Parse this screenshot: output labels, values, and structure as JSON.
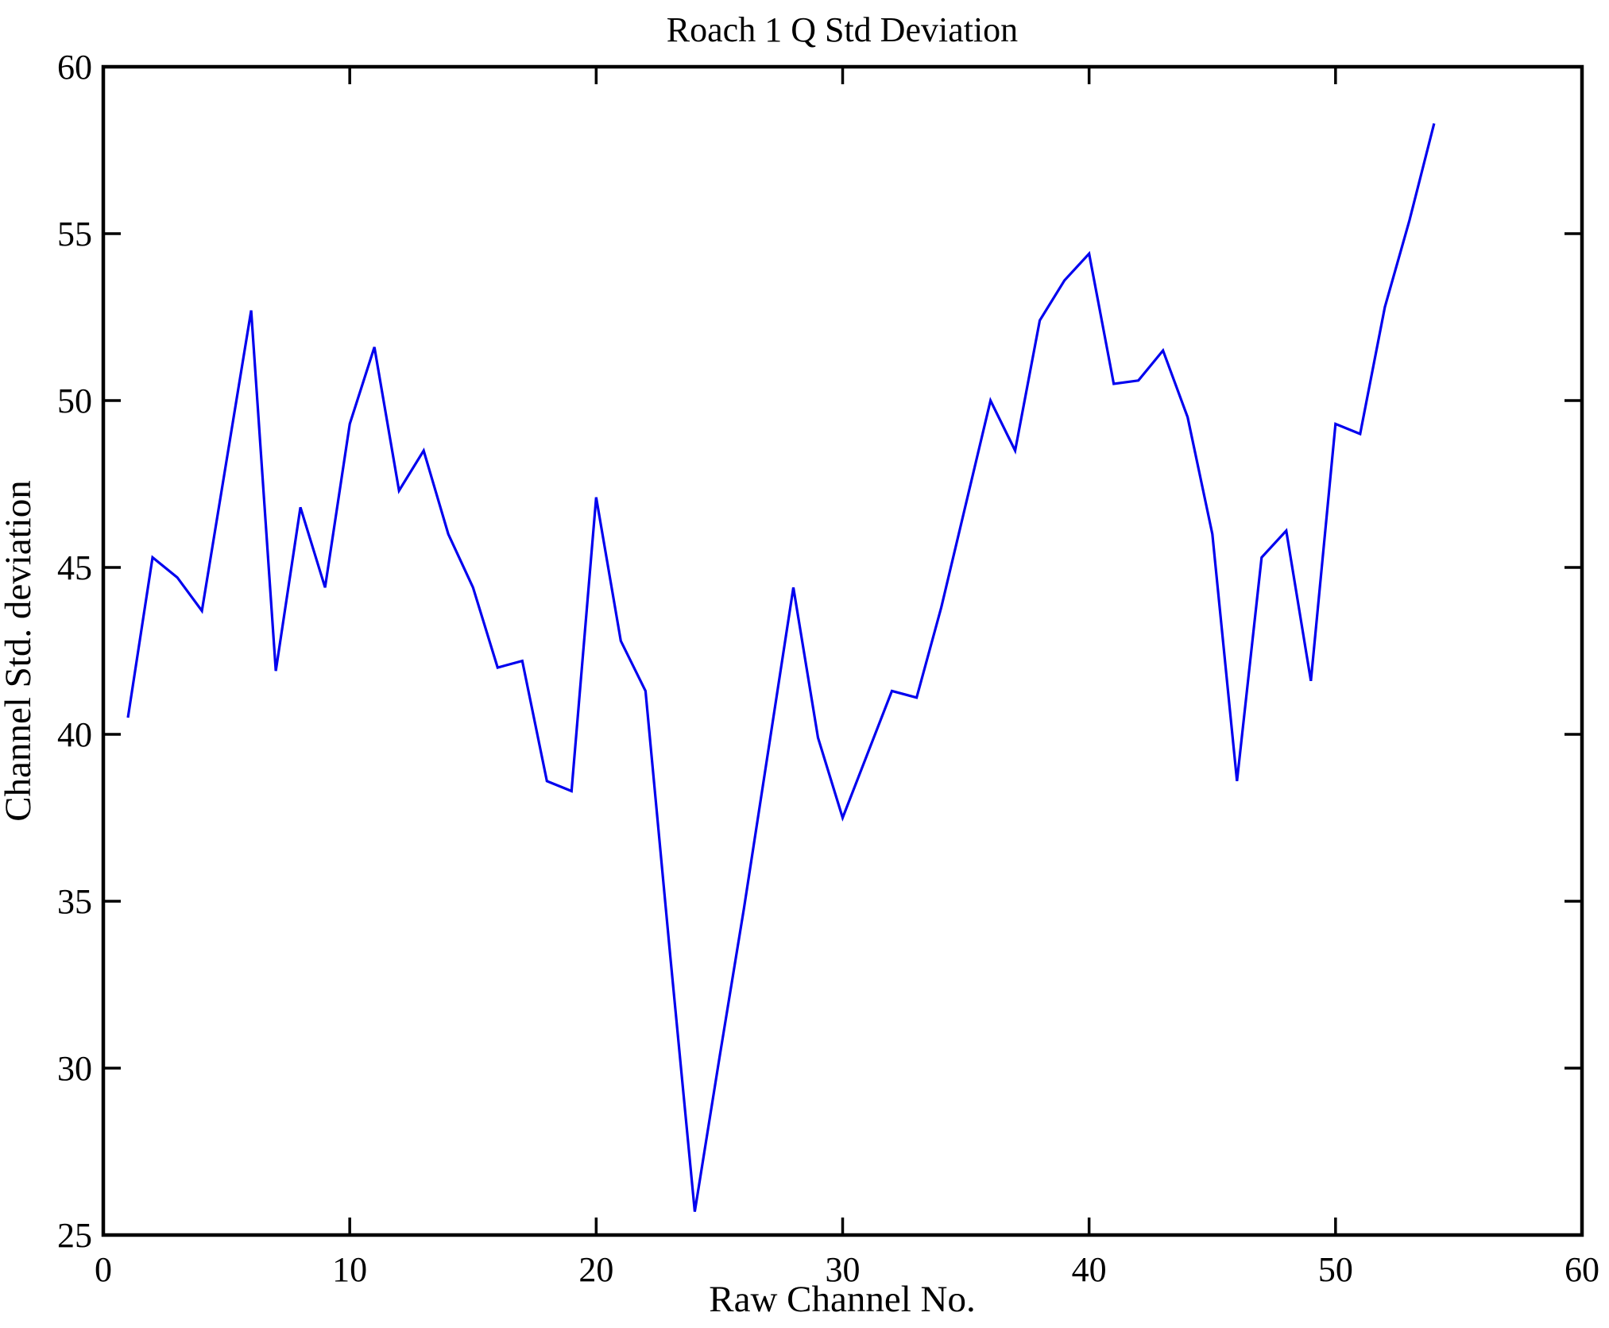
{
  "figure": {
    "title": "Roach 1 Q Std Deviation",
    "xlabel": "Raw Channel No.",
    "ylabel": "Channel Std. deviation"
  },
  "chart_data": {
    "type": "line",
    "title": "Roach 1 Q Std Deviation",
    "xlabel": "Raw Channel No.",
    "ylabel": "Channel Std. deviation",
    "xlim": [
      0,
      60
    ],
    "ylim": [
      25,
      60
    ],
    "xticks": [
      0,
      10,
      20,
      30,
      40,
      50,
      60
    ],
    "yticks": [
      25,
      30,
      35,
      40,
      45,
      50,
      55,
      60
    ],
    "grid": false,
    "legend_position": "none",
    "line_color": "#0000ee",
    "axis_color": "#000000",
    "x": [
      1,
      2,
      3,
      4,
      5,
      6,
      7,
      8,
      9,
      10,
      11,
      12,
      13,
      14,
      15,
      16,
      17,
      18,
      19,
      20,
      21,
      22,
      23,
      24,
      25,
      26,
      27,
      28,
      29,
      30,
      31,
      32,
      33,
      34,
      35,
      36,
      37,
      38,
      39,
      40,
      41,
      42,
      43,
      44,
      45,
      46,
      47,
      48,
      49,
      50,
      51,
      52,
      53,
      54
    ],
    "y": [
      40.5,
      45.3,
      44.7,
      43.7,
      48.2,
      52.7,
      41.9,
      46.8,
      44.4,
      49.3,
      51.6,
      47.3,
      48.5,
      46.0,
      44.4,
      42.0,
      42.2,
      38.6,
      38.3,
      47.1,
      42.8,
      41.3,
      33.4,
      25.7,
      30.3,
      34.8,
      39.6,
      44.4,
      39.9,
      37.5,
      39.4,
      41.3,
      41.1,
      43.8,
      46.9,
      50.0,
      48.5,
      52.4,
      53.6,
      54.4,
      50.5,
      50.6,
      51.5,
      49.5,
      46.0,
      38.6,
      45.3,
      46.1,
      41.6,
      49.3,
      49.0,
      52.8,
      55.4,
      58.3
    ]
  }
}
